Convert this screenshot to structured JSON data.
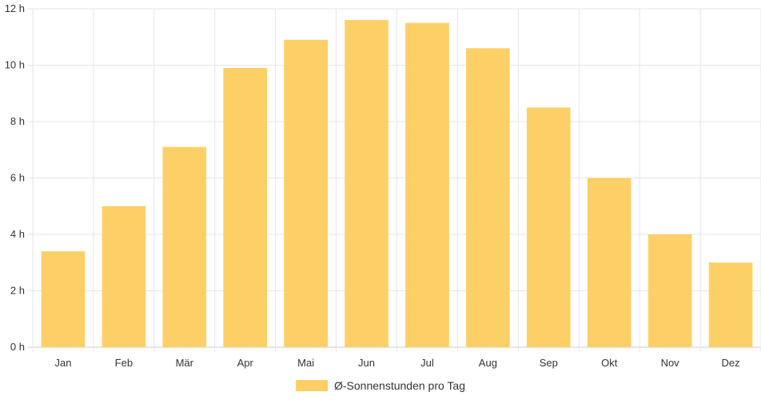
{
  "chart_data": {
    "type": "bar",
    "categories": [
      "Jan",
      "Feb",
      "Mär",
      "Apr",
      "Mai",
      "Jun",
      "Jul",
      "Aug",
      "Sep",
      "Okt",
      "Nov",
      "Dez"
    ],
    "series": [
      {
        "name": "Ø-Sonnenstunden pro Tag",
        "values": [
          3.4,
          5.0,
          7.1,
          9.9,
          10.9,
          11.6,
          11.5,
          10.6,
          8.5,
          6.0,
          4.0,
          3.0
        ],
        "color": "#fdd067"
      }
    ],
    "yticks": [
      "0 h",
      "2 h",
      "4 h",
      "6 h",
      "8 h",
      "10 h",
      "12 h"
    ],
    "ylim": [
      0,
      12
    ],
    "y_unit_suffix": " h",
    "grid": true,
    "legend_position": "bottom"
  }
}
